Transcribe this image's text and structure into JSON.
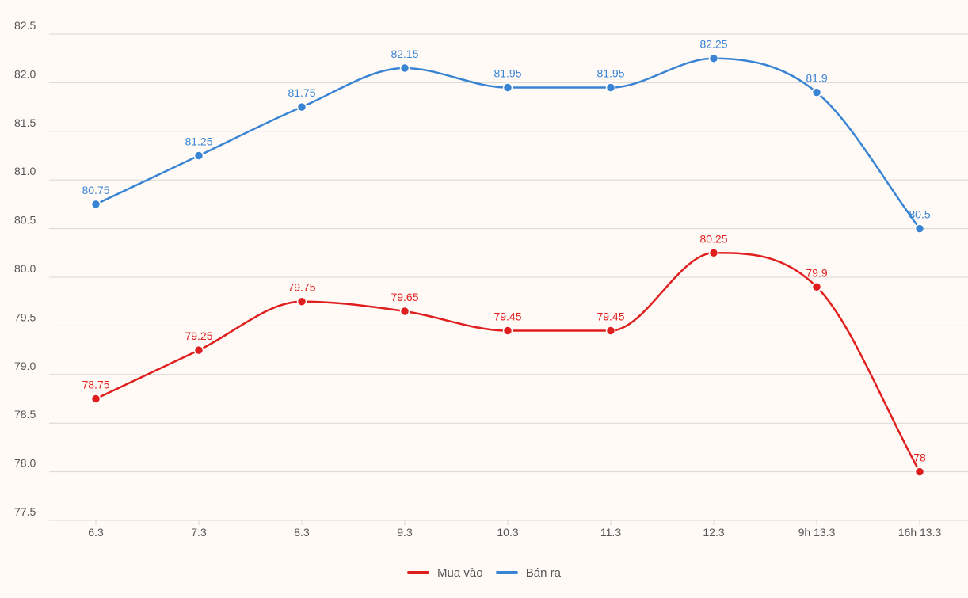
{
  "chart_data": {
    "type": "line",
    "title": "",
    "xlabel": "",
    "ylabel": "",
    "categories": [
      "6.3",
      "7.3",
      "8.3",
      "9.3",
      "10.3",
      "11.3",
      "12.3",
      "9h 13.3",
      "16h 13.3"
    ],
    "ylim": [
      77.5,
      82.5
    ],
    "yticks": [
      "82.5",
      "82.0",
      "81.5",
      "81.0",
      "80.5",
      "80.0",
      "79.5",
      "79.0",
      "78.5",
      "78.0",
      "77.5"
    ],
    "grid": true,
    "legend_position": "bottom",
    "series": [
      {
        "name": "Mua vào",
        "color": "#e01e1e",
        "values": [
          78.75,
          79.25,
          79.75,
          79.65,
          79.45,
          79.45,
          80.25,
          79.9,
          78
        ],
        "labels": [
          "78.75",
          "79.25",
          "79.75",
          "79.65",
          "79.45",
          "79.45",
          "80.25",
          "79.9",
          "78"
        ]
      },
      {
        "name": "Bán ra",
        "color": "#3a84d4",
        "values": [
          80.75,
          81.25,
          81.75,
          82.15,
          81.95,
          81.95,
          82.25,
          81.9,
          80.5
        ],
        "labels": [
          "80.75",
          "81.25",
          "81.75",
          "82.15",
          "81.95",
          "81.95",
          "82.25",
          "81.9",
          "80.5"
        ]
      }
    ]
  }
}
